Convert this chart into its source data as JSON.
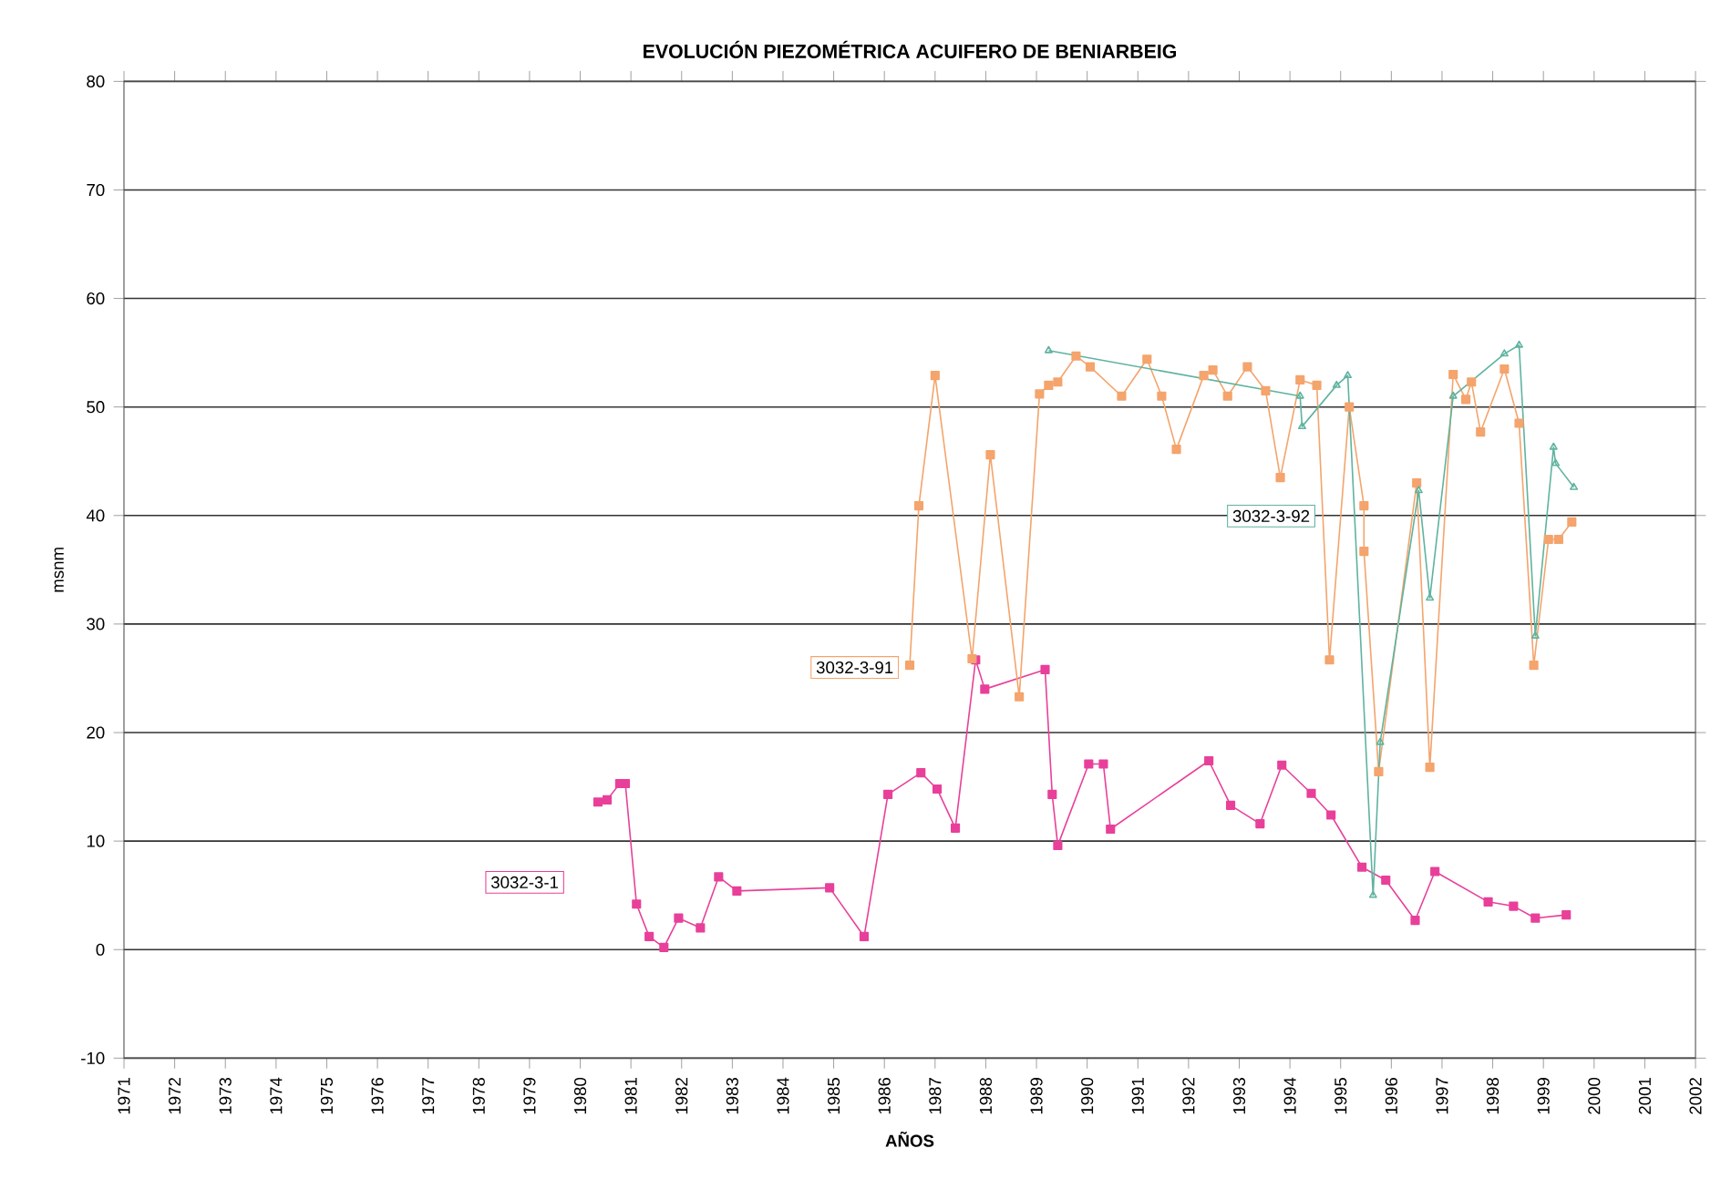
{
  "chart_data": {
    "type": "line",
    "title": "EVOLUCIÓN PIEZOMÉTRICA ACUIFERO DE BENIARBEIG",
    "xlabel": "AÑOS",
    "ylabel": "msnm",
    "xlim": [
      1971,
      2002
    ],
    "xticks": [
      1971,
      1972,
      1973,
      1974,
      1975,
      1976,
      1977,
      1978,
      1979,
      1980,
      1981,
      1982,
      1983,
      1984,
      1985,
      1986,
      1987,
      1988,
      1989,
      1990,
      1991,
      1992,
      1993,
      1994,
      1995,
      1996,
      1997,
      1998,
      1999,
      2000,
      2001,
      2002
    ],
    "ylim": [
      -10,
      80
    ],
    "yticks": [
      -10,
      0,
      10,
      20,
      30,
      40,
      50,
      60,
      70,
      80
    ],
    "grid": "y",
    "legend": false,
    "series": [
      {
        "name": "3032-3-1",
        "color": "#e8409a",
        "marker": "square",
        "x": [
          1980.35,
          1980.53,
          1980.78,
          1980.89,
          1981.11,
          1981.36,
          1981.65,
          1981.94,
          1982.37,
          1982.73,
          1983.09,
          1984.92,
          1985.6,
          1986.07,
          1986.72,
          1987.04,
          1987.4,
          1987.8,
          1987.98,
          1989.17,
          1989.31,
          1989.42,
          1990.03,
          1990.32,
          1990.46,
          1992.4,
          1992.83,
          1993.41,
          1993.84,
          1994.42,
          1994.81,
          1995.42,
          1995.89,
          1996.47,
          1996.86,
          1997.91,
          1998.41,
          1998.84,
          1999.45
        ],
        "values": [
          13.6,
          13.8,
          15.3,
          15.3,
          4.2,
          1.2,
          0.2,
          2.9,
          2.0,
          6.7,
          5.4,
          5.7,
          1.2,
          14.3,
          16.3,
          14.8,
          11.2,
          26.7,
          24.0,
          25.8,
          14.3,
          9.6,
          17.1,
          17.1,
          11.1,
          17.4,
          13.3,
          11.6,
          17.0,
          14.4,
          12.4,
          7.6,
          6.4,
          2.7,
          7.2,
          4.4,
          4.0,
          2.9,
          3.2
        ]
      },
      {
        "name": "3032-3-91",
        "color": "#f4a46c",
        "marker": "square",
        "x": [
          1986.5,
          1986.68,
          1987.0,
          1987.73,
          1988.09,
          1988.66,
          1989.06,
          1989.24,
          1989.42,
          1989.78,
          1990.06,
          1990.68,
          1991.18,
          1991.47,
          1991.76,
          1992.3,
          1992.48,
          1992.77,
          1993.16,
          1993.52,
          1993.81,
          1994.2,
          1994.53,
          1994.78,
          1995.17,
          1995.46,
          1995.46,
          1995.75,
          1996.5,
          1996.76,
          1997.22,
          1997.47,
          1997.58,
          1997.76,
          1998.23,
          1998.52,
          1998.81,
          1999.1,
          1999.3,
          1999.56
        ],
        "values": [
          26.2,
          40.9,
          52.9,
          26.8,
          45.6,
          23.3,
          51.2,
          52.0,
          52.3,
          54.7,
          53.7,
          51.0,
          54.4,
          51.0,
          46.1,
          52.9,
          53.4,
          51.0,
          53.7,
          51.5,
          43.5,
          52.5,
          52.0,
          26.7,
          50.0,
          40.9,
          36.7,
          16.4,
          43.0,
          16.8,
          53.0,
          50.7,
          52.3,
          47.7,
          53.5,
          48.5,
          26.2,
          37.8,
          37.8,
          39.4
        ]
      },
      {
        "name": "3032-3-92",
        "color": "#5fb3a0",
        "marker": "triangle",
        "x": [
          1989.24,
          1994.2,
          1994.24,
          1994.92,
          1995.14,
          1995.64,
          1995.78,
          1996.54,
          1996.76,
          1997.22,
          1998.23,
          1998.52,
          1998.84,
          1999.2,
          1999.24,
          1999.6
        ],
        "values": [
          55.2,
          51.0,
          48.2,
          52.0,
          52.9,
          5.0,
          19.1,
          42.3,
          32.4,
          51.0,
          54.9,
          55.7,
          28.9,
          46.3,
          44.8,
          42.6
        ]
      }
    ]
  }
}
